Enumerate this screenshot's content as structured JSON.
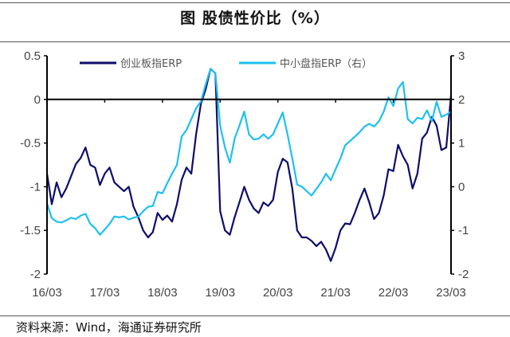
{
  "title": "图 股债性价比（%）",
  "source": "资料来源：Wind，海通证券研究所",
  "chart_data": {
    "type": "line",
    "title": "图 股债性价比（%）",
    "x_tick_labels": [
      "16/03",
      "17/03",
      "18/03",
      "19/03",
      "20/03",
      "21/03",
      "22/03",
      "23/03"
    ],
    "left_axis": {
      "ylim": [
        -2,
        0.5
      ],
      "ticks": [
        -2,
        -1.5,
        -1,
        -0.5,
        0,
        0.5
      ],
      "tick_labels": [
        "-2",
        "-1.5",
        "-1",
        "-0.5",
        "0",
        "0.5"
      ]
    },
    "right_axis": {
      "ylim": [
        -2,
        3
      ],
      "ticks": [
        -2,
        -1,
        0,
        1,
        2,
        3
      ],
      "tick_labels": [
        "-2",
        "-1",
        "0",
        "1",
        "2",
        "3"
      ]
    },
    "grid": false,
    "legend_position": "top",
    "x": [
      "2016-03",
      "2016-04",
      "2016-05",
      "2016-06",
      "2016-07",
      "2016-08",
      "2016-09",
      "2016-10",
      "2016-11",
      "2016-12",
      "2017-01",
      "2017-02",
      "2017-03",
      "2017-04",
      "2017-05",
      "2017-06",
      "2017-07",
      "2017-08",
      "2017-09",
      "2017-10",
      "2017-11",
      "2017-12",
      "2018-01",
      "2018-02",
      "2018-03",
      "2018-04",
      "2018-05",
      "2018-06",
      "2018-07",
      "2018-08",
      "2018-09",
      "2018-10",
      "2018-11",
      "2018-12",
      "2019-01",
      "2019-02",
      "2019-03",
      "2019-04",
      "2019-05",
      "2019-06",
      "2019-07",
      "2019-08",
      "2019-09",
      "2019-10",
      "2019-11",
      "2019-12",
      "2020-01",
      "2020-02",
      "2020-03",
      "2020-04",
      "2020-05",
      "2020-06",
      "2020-07",
      "2020-08",
      "2020-09",
      "2020-10",
      "2020-11",
      "2020-12",
      "2021-01",
      "2021-02",
      "2021-03",
      "2021-04",
      "2021-05",
      "2021-06",
      "2021-07",
      "2021-08",
      "2021-09",
      "2021-10",
      "2021-11",
      "2021-12",
      "2022-01",
      "2022-02",
      "2022-03",
      "2022-04",
      "2022-05",
      "2022-06",
      "2022-07",
      "2022-08",
      "2022-09",
      "2022-10",
      "2022-11",
      "2022-12",
      "2023-01",
      "2023-02",
      "2023-03"
    ],
    "series": [
      {
        "name": "创业板指ERP",
        "axis": "left",
        "color": "#0d0d6b",
        "values": [
          -0.85,
          -1.2,
          -0.95,
          -1.12,
          -1.02,
          -0.88,
          -0.74,
          -0.67,
          -0.55,
          -0.75,
          -0.78,
          -0.98,
          -0.85,
          -0.78,
          -0.95,
          -1.0,
          -1.05,
          -1.0,
          -1.23,
          -1.35,
          -1.5,
          -1.58,
          -1.52,
          -1.3,
          -1.38,
          -1.33,
          -1.4,
          -1.2,
          -0.92,
          -0.78,
          -0.85,
          -0.4,
          -0.05,
          0.12,
          0.35,
          0.3,
          -1.28,
          -1.5,
          -1.55,
          -1.35,
          -1.18,
          -1.0,
          -1.15,
          -1.25,
          -1.3,
          -1.18,
          -1.22,
          -1.15,
          -0.83,
          -0.68,
          -0.72,
          -1.02,
          -1.5,
          -1.58,
          -1.58,
          -1.62,
          -1.68,
          -1.63,
          -1.72,
          -1.85,
          -1.7,
          -1.5,
          -1.42,
          -1.43,
          -1.3,
          -1.15,
          -1.02,
          -1.18,
          -1.37,
          -1.3,
          -1.1,
          -0.8,
          -0.82,
          -0.52,
          -0.65,
          -0.75,
          -1.02,
          -0.85,
          -0.45,
          -0.38,
          -0.2,
          -0.3,
          -0.58,
          -0.55,
          0.05
        ]
      },
      {
        "name": "中小盘指ERP（右）",
        "axis": "right",
        "color": "#1ec0f0",
        "values": [
          -0.38,
          -0.72,
          -0.8,
          -0.82,
          -0.77,
          -0.71,
          -0.74,
          -0.66,
          -0.62,
          -0.85,
          -0.95,
          -1.1,
          -0.98,
          -0.85,
          -0.68,
          -0.7,
          -0.68,
          -0.75,
          -0.71,
          -0.68,
          -0.56,
          -0.46,
          -0.44,
          -0.12,
          -0.15,
          0.08,
          0.3,
          0.5,
          1.15,
          1.3,
          1.55,
          1.8,
          1.95,
          2.35,
          2.7,
          2.6,
          1.4,
          0.9,
          0.55,
          1.1,
          1.4,
          1.72,
          1.2,
          1.08,
          1.1,
          1.2,
          1.1,
          1.2,
          1.45,
          1.7,
          1.2,
          0.65,
          0.05,
          0.0,
          -0.1,
          -0.2,
          -0.05,
          0.1,
          0.3,
          0.15,
          0.4,
          0.65,
          0.95,
          1.05,
          1.15,
          1.25,
          1.38,
          1.44,
          1.38,
          1.5,
          1.72,
          2.05,
          1.85,
          2.25,
          2.4,
          1.55,
          1.45,
          1.58,
          1.55,
          1.75,
          1.5,
          1.95,
          1.6,
          1.65,
          1.72
        ]
      }
    ]
  }
}
